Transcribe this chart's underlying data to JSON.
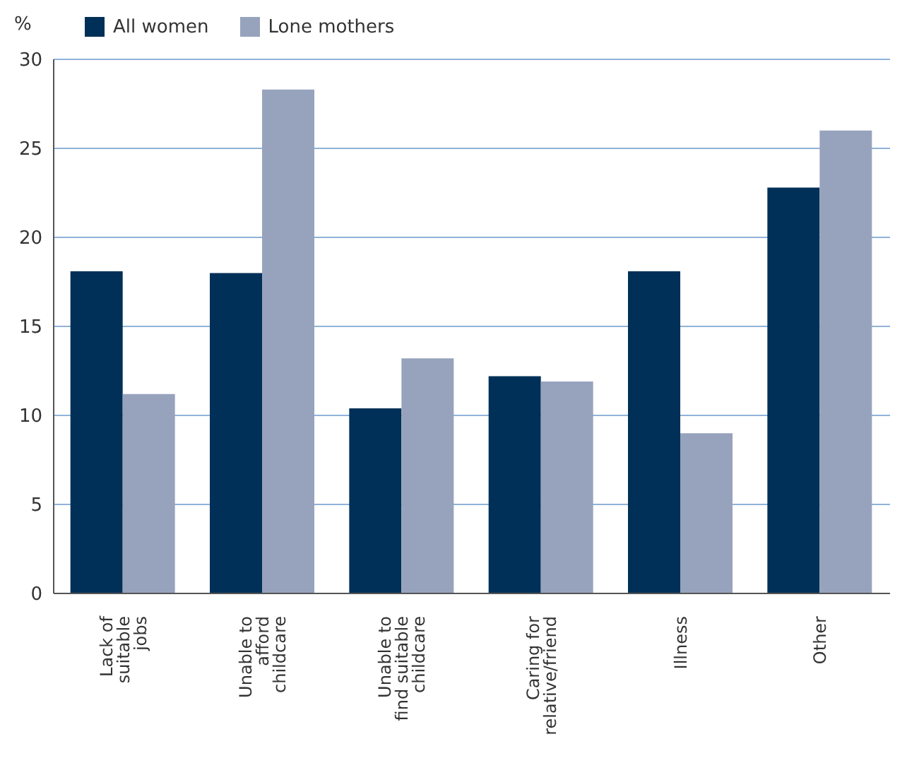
{
  "chart_data": {
    "type": "bar",
    "ylabel": "%",
    "categories": [
      "Lack of\nsuitable\njobs",
      "Unable to\nafford\nchildcare",
      "Unable to\nfind suitable\nchildcare",
      "Caring for\nrelative/friend",
      "Illness",
      "Other"
    ],
    "series": [
      {
        "name": "All women",
        "color": "#003057",
        "values": [
          18.1,
          18.0,
          10.4,
          12.2,
          18.1,
          22.8
        ]
      },
      {
        "name": "Lone mothers",
        "color": "#97a3bd",
        "values": [
          11.2,
          28.3,
          13.2,
          11.9,
          9.0,
          26.0
        ]
      }
    ],
    "ylim": [
      0,
      30
    ],
    "yticks": [
      0,
      5,
      10,
      15,
      20,
      25,
      30
    ],
    "grid": "y",
    "legend": "top left"
  }
}
